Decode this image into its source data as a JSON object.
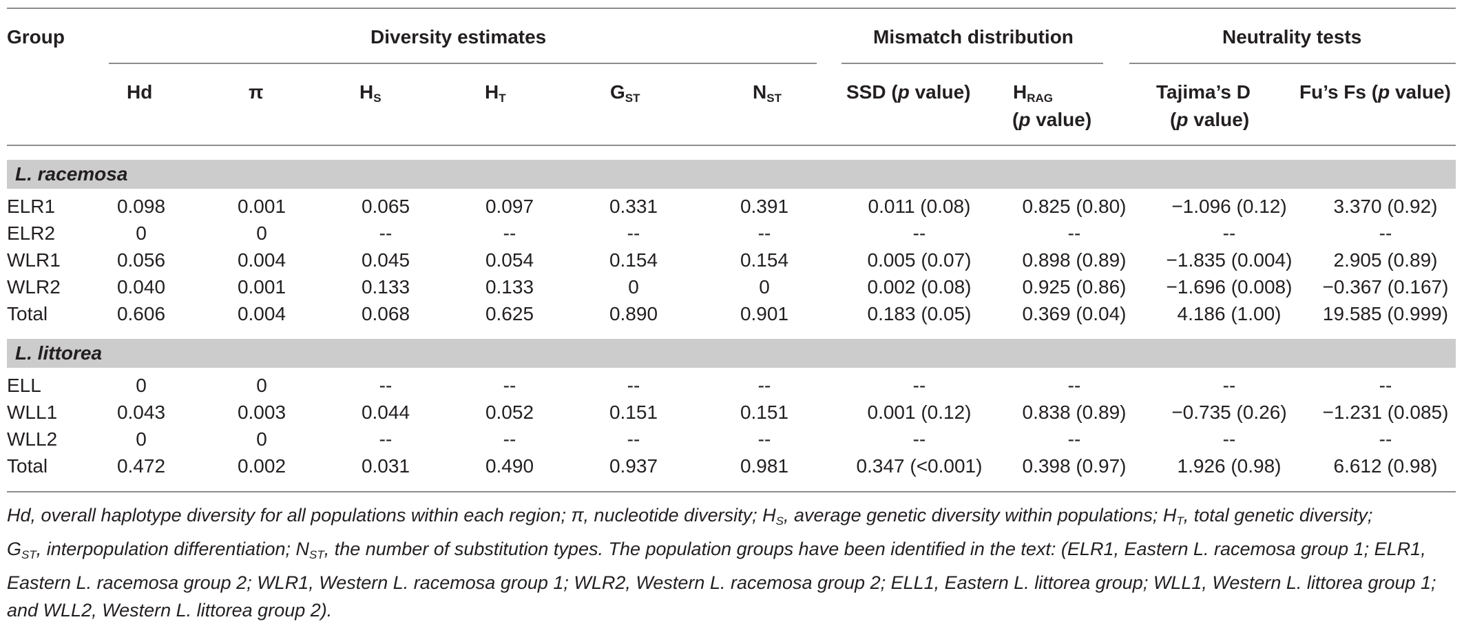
{
  "headers": {
    "group": "Group",
    "diversity": "Diversity estimates",
    "mismatch": "Mismatch distribution",
    "neutrality": "Neutrality tests",
    "hd": "Hd",
    "pi": "π",
    "hs": {
      "base": "H",
      "sub": "S"
    },
    "ht": {
      "base": "H",
      "sub": "T"
    },
    "gst": {
      "base": "G",
      "sub": "ST"
    },
    "nst": {
      "base": "N",
      "sub": "ST"
    },
    "ssd": {
      "pre": "SSD (",
      "it": "p",
      "post": " value)"
    },
    "hrag": {
      "base": "H",
      "sub": "RAG",
      "pre": "(",
      "it": "p",
      "post": " value)"
    },
    "tajima": {
      "line1": "Tajima’s D",
      "pre": "(",
      "it": "p",
      "post": " value)"
    },
    "fus": {
      "pre": "Fu’s Fs (",
      "it": "p",
      "post": " value)"
    }
  },
  "sections": [
    {
      "title": "L. racemosa",
      "rows": [
        [
          "ELR1",
          "0.098",
          "0.001",
          "0.065",
          "0.097",
          "0.331",
          "0.391",
          "0.011 (0.08)",
          "0.825 (0.80)",
          "−1.096 (0.12)",
          "3.370 (0.92)"
        ],
        [
          "ELR2",
          "0",
          "0",
          "--",
          "--",
          "--",
          "--",
          "--",
          "--",
          "--",
          "--"
        ],
        [
          "WLR1",
          "0.056",
          "0.004",
          "0.045",
          "0.054",
          "0.154",
          "0.154",
          "0.005 (0.07)",
          "0.898 (0.89)",
          "−1.835 (0.004)",
          "2.905 (0.89)"
        ],
        [
          "WLR2",
          "0.040",
          "0.001",
          "0.133",
          "0.133",
          "0",
          "0",
          "0.002 (0.08)",
          "0.925 (0.86)",
          "−1.696 (0.008)",
          "−0.367 (0.167)"
        ],
        [
          "Total",
          "0.606",
          "0.004",
          "0.068",
          "0.625",
          "0.890",
          "0.901",
          "0.183 (0.05)",
          "0.369 (0.04)",
          "4.186 (1.00)",
          "19.585 (0.999)"
        ]
      ]
    },
    {
      "title": "L. littorea",
      "rows": [
        [
          "ELL",
          "0",
          "0",
          "--",
          "--",
          "--",
          "--",
          "--",
          "--",
          "--",
          "--"
        ],
        [
          "WLL1",
          "0.043",
          "0.003",
          "0.044",
          "0.052",
          "0.151",
          "0.151",
          "0.001 (0.12)",
          "0.838 (0.89)",
          "−0.735 (0.26)",
          "−1.231 (0.085)"
        ],
        [
          "WLL2",
          "0",
          "0",
          "--",
          "--",
          "--",
          "--",
          "--",
          "--",
          "--",
          "--"
        ],
        [
          "Total",
          "0.472",
          "0.002",
          "0.031",
          "0.490",
          "0.937",
          "0.981",
          "0.347 (<0.001)",
          "0.398 (0.97)",
          "1.926 (0.98)",
          "6.612 (0.98)"
        ]
      ]
    }
  ],
  "footnote": {
    "t1": "Hd, overall haplotype diversity for all populations within each region; ",
    "pi": "π",
    "t2": ", nucleotide diversity; H",
    "s1": "S",
    "t3": ", average genetic diversity within populations; H",
    "s2": "T",
    "t4": ", total genetic diversity;",
    "t5": "G",
    "s3": "ST",
    "t6": ", interpopulation differentiation; N",
    "s4": "ST",
    "t7": ", the number of substitution types. The population groups have been identified in the text: (ELR1, Eastern L. racemosa group 1; ELR1, Eastern L. racemosa group 2; WLR1, Western L. racemosa group 1; WLR2, Western L. racemosa group 2; ELL1, Eastern L. littorea group; WLL1, Western L. littorea group 1; and WLL2, Western L. littorea group 2)."
  }
}
